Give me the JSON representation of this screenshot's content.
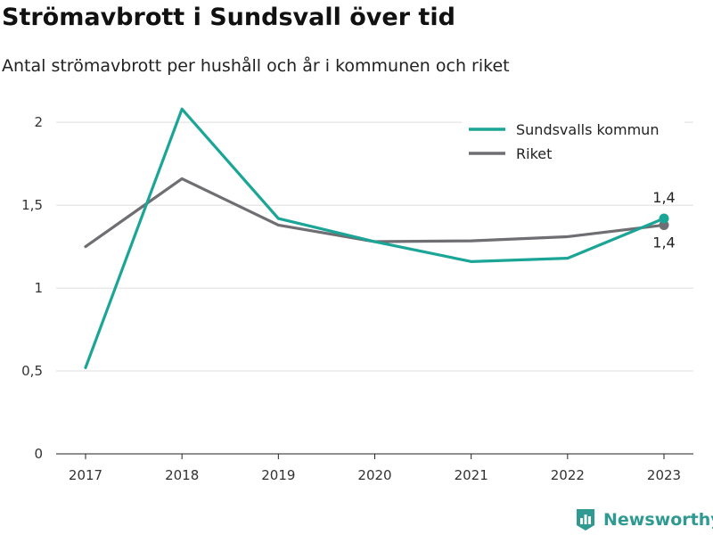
{
  "title": "Strömavbrott i Sundsvall över tid",
  "subtitle": "Antal strömavbrott per hushåll och år i kommunen och riket",
  "brand": {
    "name": "Newsworthy",
    "icon": "newsworthy-logo-icon",
    "color": "#2e9a92"
  },
  "chart_data": {
    "type": "line",
    "x": [
      "2017",
      "2018",
      "2019",
      "2020",
      "2021",
      "2022",
      "2023"
    ],
    "series": [
      {
        "name": "Sundsvalls kommun",
        "color": "#1aa597",
        "values": [
          0.52,
          2.08,
          1.42,
          1.28,
          1.16,
          1.18,
          1.42
        ],
        "end_label": "1,4"
      },
      {
        "name": "Riket",
        "color": "#6e6e73",
        "values": [
          1.25,
          1.66,
          1.38,
          1.28,
          1.285,
          1.31,
          1.38
        ],
        "end_label": "1,4"
      }
    ],
    "yticks": [
      {
        "value": 0,
        "label": "0"
      },
      {
        "value": 0.5,
        "label": "0,5"
      },
      {
        "value": 1,
        "label": "1"
      },
      {
        "value": 1.5,
        "label": "1,5"
      },
      {
        "value": 2,
        "label": "2"
      }
    ],
    "ylim": [
      0,
      2.2
    ],
    "grid": true,
    "legend": "top-right",
    "xlabel": "",
    "ylabel": ""
  }
}
